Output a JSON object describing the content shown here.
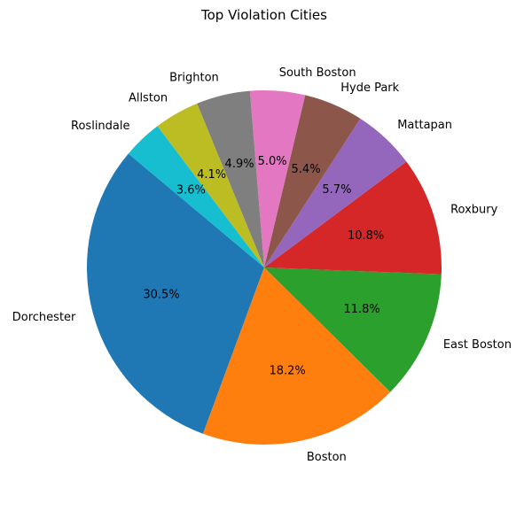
{
  "chart_data": {
    "type": "pie",
    "title": "Top Violation Cities",
    "start_angle_deg": 140,
    "direction": "counterclockwise",
    "slices": [
      {
        "label": "Dorchester",
        "value": 30.5,
        "pct_label": "30.5%",
        "color": "#1f77b4"
      },
      {
        "label": "Boston",
        "value": 18.2,
        "pct_label": "18.2%",
        "color": "#ff7f0e"
      },
      {
        "label": "East Boston",
        "value": 11.8,
        "pct_label": "11.8%",
        "color": "#2ca02c"
      },
      {
        "label": "Roxbury",
        "value": 10.8,
        "pct_label": "10.8%",
        "color": "#d62728"
      },
      {
        "label": "Mattapan",
        "value": 5.7,
        "pct_label": "5.7%",
        "color": "#9467bd"
      },
      {
        "label": "Hyde Park",
        "value": 5.4,
        "pct_label": "5.4%",
        "color": "#8c564b"
      },
      {
        "label": "South Boston",
        "value": 5.0,
        "pct_label": "5.0%",
        "color": "#e377c2"
      },
      {
        "label": "Brighton",
        "value": 4.9,
        "pct_label": "4.9%",
        "color": "#7f7f7f"
      },
      {
        "label": "Allston",
        "value": 4.1,
        "pct_label": "4.1%",
        "color": "#bcbd22"
      },
      {
        "label": "Roslindale",
        "value": 3.6,
        "pct_label": "3.6%",
        "color": "#17becf"
      }
    ]
  }
}
